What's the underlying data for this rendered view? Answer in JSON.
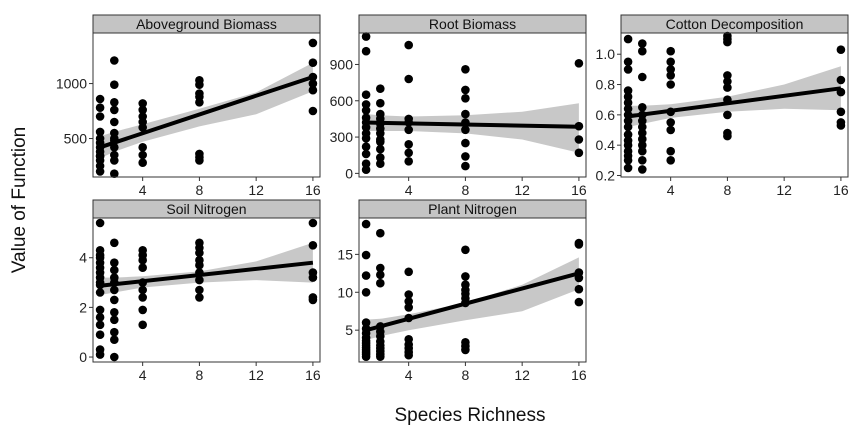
{
  "figure": {
    "xlabel": "Species Richness",
    "ylabel": "Value of Function"
  },
  "colors": {
    "point": "#000000",
    "line": "#000000",
    "band": "#c8c8c8",
    "strip": "#c4c4c4",
    "frame": "#333333"
  },
  "chart_data": [
    {
      "type": "scatter",
      "title": "Aboveground Biomass",
      "xlim": [
        0.5,
        16.5
      ],
      "ylim": [
        150,
        1460
      ],
      "xticks": [
        4,
        8,
        12,
        16
      ],
      "yticks": [
        500,
        1000
      ],
      "x": [
        1,
        1,
        1,
        1,
        1,
        1,
        1,
        1,
        1,
        1,
        1,
        1,
        1,
        2,
        2,
        2,
        2,
        2,
        2,
        2,
        2,
        2,
        2,
        2,
        2,
        4,
        4,
        4,
        4,
        4,
        4,
        4,
        4,
        8,
        8,
        8,
        8,
        8,
        8,
        8,
        8,
        16,
        16,
        16,
        16,
        16,
        16
      ],
      "y": [
        200,
        250,
        300,
        340,
        380,
        420,
        460,
        500,
        560,
        700,
        780,
        860,
        340,
        180,
        300,
        350,
        420,
        480,
        550,
        650,
        760,
        830,
        990,
        1210,
        500,
        280,
        350,
        420,
        600,
        650,
        700,
        760,
        820,
        300,
        330,
        360,
        830,
        880,
        910,
        990,
        1030,
        750,
        940,
        1000,
        1060,
        1190,
        1370
      ],
      "fit": {
        "x": [
          1,
          16
        ],
        "y": [
          420,
          1060
        ]
      },
      "band": {
        "x": [
          1,
          2,
          4,
          8,
          12,
          16
        ],
        "upper": [
          520,
          560,
          630,
          770,
          920,
          1190
        ],
        "lower": [
          320,
          380,
          470,
          610,
          720,
          930
        ]
      }
    },
    {
      "type": "scatter",
      "title": "Root Biomass",
      "xlim": [
        0.5,
        16.5
      ],
      "ylim": [
        -30,
        1160
      ],
      "xticks": [
        4,
        8,
        12,
        16
      ],
      "yticks": [
        0,
        300,
        600,
        900
      ],
      "x": [
        1,
        1,
        1,
        1,
        1,
        1,
        1,
        1,
        1,
        1,
        1,
        1,
        1,
        1,
        2,
        2,
        2,
        2,
        2,
        2,
        2,
        2,
        2,
        2,
        2,
        2,
        4,
        4,
        4,
        4,
        4,
        4,
        4,
        4,
        8,
        8,
        8,
        8,
        8,
        8,
        8,
        8,
        8,
        16,
        16,
        16,
        16
      ],
      "y": [
        30,
        80,
        160,
        220,
        290,
        330,
        380,
        420,
        460,
        520,
        570,
        650,
        1010,
        1130,
        80,
        130,
        200,
        260,
        330,
        370,
        410,
        450,
        490,
        580,
        700,
        280,
        100,
        170,
        240,
        360,
        420,
        450,
        780,
        1060,
        60,
        140,
        250,
        360,
        420,
        490,
        620,
        690,
        860,
        170,
        280,
        390,
        910
      ],
      "fit": {
        "x": [
          1,
          16
        ],
        "y": [
          420,
          385
        ]
      },
      "band": {
        "x": [
          1,
          2,
          4,
          8,
          12,
          16
        ],
        "upper": [
          490,
          480,
          470,
          480,
          510,
          580
        ],
        "lower": [
          350,
          350,
          350,
          330,
          280,
          170
        ]
      }
    },
    {
      "type": "scatter",
      "title": "Cotton Decomposition",
      "xlim": [
        0.5,
        16.5
      ],
      "ylim": [
        0.19,
        1.14
      ],
      "xticks": [
        4,
        8,
        12,
        16
      ],
      "yticks": [
        0.2,
        0.4,
        0.6,
        0.8,
        1.0
      ],
      "x": [
        1,
        1,
        1,
        1,
        1,
        1,
        1,
        1,
        1,
        1,
        1,
        1,
        1,
        1,
        1,
        1,
        1,
        2,
        2,
        2,
        2,
        2,
        2,
        2,
        2,
        2,
        2,
        2,
        2,
        2,
        4,
        4,
        4,
        4,
        4,
        4,
        4,
        4,
        4,
        4,
        8,
        8,
        8,
        8,
        8,
        8,
        8,
        8,
        8,
        8,
        16,
        16,
        16,
        16,
        16,
        16
      ],
      "y": [
        0.25,
        0.3,
        0.33,
        0.36,
        0.4,
        0.43,
        0.47,
        0.52,
        0.56,
        0.6,
        0.64,
        0.68,
        0.72,
        0.76,
        0.9,
        0.95,
        1.1,
        0.24,
        0.3,
        0.36,
        0.4,
        0.44,
        0.48,
        0.52,
        0.56,
        0.6,
        0.65,
        0.85,
        1.02,
        1.07,
        0.3,
        0.36,
        0.5,
        0.55,
        0.62,
        0.8,
        0.86,
        0.9,
        0.95,
        1.02,
        0.46,
        0.48,
        0.6,
        0.7,
        0.78,
        0.82,
        0.86,
        1.08,
        1.1,
        1.12,
        0.53,
        0.55,
        0.62,
        0.75,
        0.83,
        1.03
      ],
      "fit": {
        "x": [
          1,
          16
        ],
        "y": [
          0.59,
          0.775
        ]
      },
      "band": {
        "x": [
          1,
          2,
          4,
          8,
          12,
          16
        ],
        "upper": [
          0.66,
          0.66,
          0.67,
          0.72,
          0.8,
          0.92
        ],
        "lower": [
          0.52,
          0.54,
          0.58,
          0.62,
          0.64,
          0.63
        ]
      }
    },
    {
      "type": "scatter",
      "title": "Soil Nitrogen",
      "xlim": [
        0.5,
        16.5
      ],
      "ylim": [
        -0.2,
        5.6
      ],
      "xticks": [
        4,
        8,
        12,
        16
      ],
      "yticks": [
        0,
        2,
        4
      ],
      "x": [
        1,
        1,
        1,
        1,
        1,
        1,
        1,
        1,
        1,
        1,
        1,
        1,
        1,
        1,
        1,
        1,
        1,
        2,
        2,
        2,
        2,
        2,
        2,
        2,
        2,
        2,
        2,
        2,
        2,
        4,
        4,
        4,
        4,
        4,
        4,
        4,
        4,
        4,
        8,
        8,
        8,
        8,
        8,
        8,
        8,
        8,
        8,
        16,
        16,
        16,
        16,
        16,
        16
      ],
      "y": [
        0.1,
        0.3,
        0.9,
        1.3,
        1.6,
        1.9,
        2.6,
        2.9,
        3.0,
        3.2,
        3.4,
        3.6,
        3.8,
        4.0,
        4.1,
        4.3,
        5.4,
        0.0,
        0.7,
        1.0,
        1.5,
        1.8,
        2.3,
        2.7,
        3.0,
        3.2,
        3.5,
        3.8,
        4.6,
        1.3,
        1.9,
        2.4,
        2.7,
        3.0,
        3.6,
        3.9,
        4.1,
        4.3,
        2.4,
        2.7,
        3.1,
        3.4,
        3.7,
        3.9,
        4.2,
        4.4,
        4.6,
        2.3,
        2.4,
        3.2,
        3.4,
        4.5,
        5.4
      ],
      "fit": {
        "x": [
          1,
          16
        ],
        "y": [
          2.87,
          3.8
        ]
      },
      "band": {
        "x": [
          1,
          2,
          4,
          8,
          12,
          16
        ],
        "upper": [
          3.2,
          3.2,
          3.25,
          3.45,
          3.85,
          4.6
        ],
        "lower": [
          2.5,
          2.6,
          2.8,
          3.0,
          3.1,
          3.0
        ]
      }
    },
    {
      "type": "scatter",
      "title": "Plant Nitrogen",
      "xlim": [
        0.5,
        16.5
      ],
      "ylim": [
        0.8,
        19.8
      ],
      "xticks": [
        4,
        8,
        12,
        16
      ],
      "yticks": [
        5,
        10,
        15
      ],
      "x": [
        1,
        1,
        1,
        1,
        1,
        1,
        1,
        1,
        1,
        1,
        1,
        1,
        1,
        1,
        1,
        1,
        2,
        2,
        2,
        2,
        2,
        2,
        2,
        2,
        2,
        2,
        2,
        2,
        2,
        4,
        4,
        4,
        4,
        4,
        4,
        4,
        4,
        4,
        4,
        8,
        8,
        8,
        8,
        8,
        8,
        8,
        8,
        8,
        8,
        16,
        16,
        16,
        16,
        16,
        16
      ],
      "y": [
        1.5,
        1.8,
        2.1,
        2.4,
        2.7,
        3.0,
        3.3,
        3.6,
        4.0,
        4.6,
        5.2,
        6.0,
        10.0,
        12.2,
        14.9,
        19.0,
        1.5,
        1.8,
        2.2,
        2.6,
        3.0,
        3.5,
        4.2,
        4.8,
        5.5,
        11.2,
        12.3,
        13.2,
        17.8,
        1.7,
        2.1,
        2.6,
        3.1,
        3.8,
        6.6,
        8.0,
        8.8,
        9.7,
        12.7,
        2.4,
        2.9,
        3.4,
        8.6,
        9.2,
        9.8,
        10.3,
        11.0,
        12.1,
        15.6,
        8.7,
        10.4,
        11.9,
        12.6,
        16.3,
        16.5
      ],
      "fit": {
        "x": [
          1,
          16
        ],
        "y": [
          5.0,
          12.5
        ]
      },
      "band": {
        "x": [
          1,
          2,
          4,
          8,
          12,
          16
        ],
        "upper": [
          6.4,
          6.5,
          7.1,
          8.6,
          11.0,
          14.6
        ],
        "lower": [
          3.7,
          4.2,
          5.0,
          6.3,
          7.5,
          10.4
        ]
      }
    }
  ]
}
